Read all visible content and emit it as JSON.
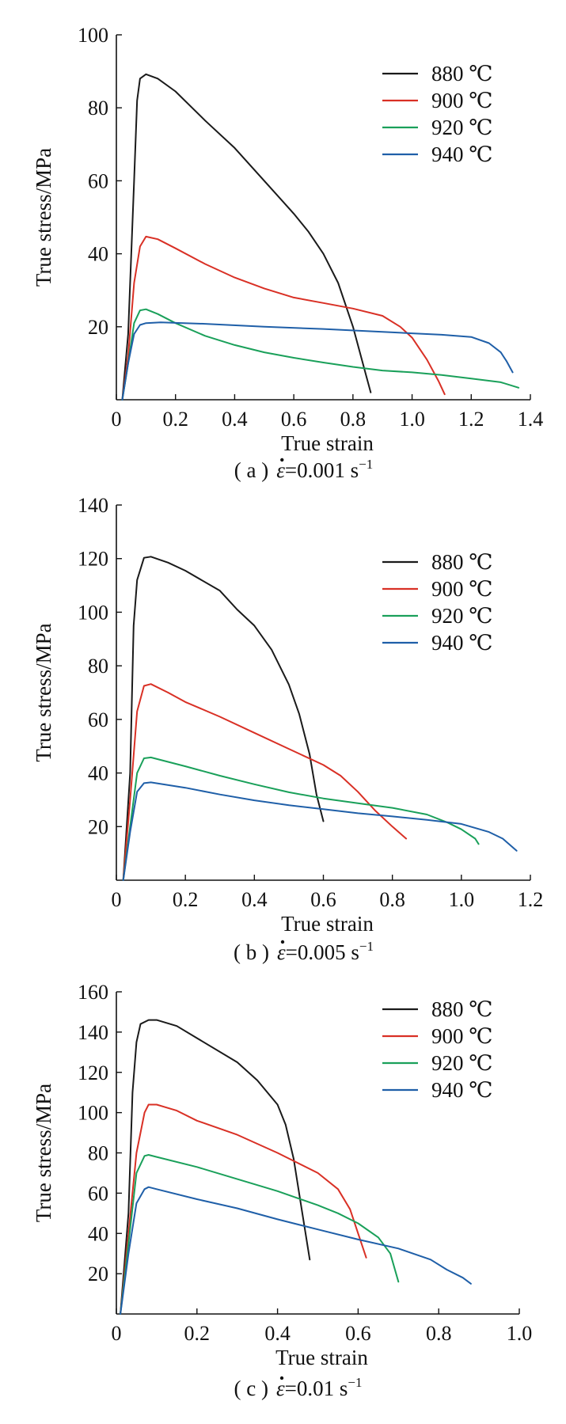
{
  "chart_data": [
    {
      "id": "a",
      "type": "line",
      "caption": {
        "prefix": "( a )",
        "symbol": "ε",
        "rest": "=0.001 s",
        "sup": "−1"
      },
      "xlabel": "True strain",
      "ylabel": "True stress/MPa",
      "xlim": [
        0,
        1.4
      ],
      "ylim": [
        0,
        100
      ],
      "xticks": [
        "0",
        "0.2",
        "0.4",
        "0.6",
        "0.8",
        "1.0",
        "1.2",
        "1.4"
      ],
      "yticks": [
        "20",
        "40",
        "60",
        "80",
        "100"
      ],
      "x_tick_values": [
        0,
        0.2,
        0.4,
        0.6,
        0.8,
        1.0,
        1.2,
        1.4
      ],
      "y_tick_values": [
        20,
        40,
        60,
        80,
        100
      ],
      "grid": false,
      "legend_position": "top-right",
      "series": [
        {
          "name": "880 ℃",
          "color": "#1a1a1a",
          "points": [
            [
              0.02,
              0
            ],
            [
              0.04,
              18
            ],
            [
              0.06,
              60
            ],
            [
              0.07,
              82
            ],
            [
              0.08,
              88
            ],
            [
              0.1,
              89.2
            ],
            [
              0.14,
              88
            ],
            [
              0.2,
              84.5
            ],
            [
              0.3,
              76.5
            ],
            [
              0.4,
              69
            ],
            [
              0.5,
              60
            ],
            [
              0.6,
              51
            ],
            [
              0.65,
              46
            ],
            [
              0.7,
              40
            ],
            [
              0.75,
              32
            ],
            [
              0.8,
              20
            ],
            [
              0.84,
              8
            ],
            [
              0.86,
              2
            ]
          ]
        },
        {
          "name": "900 ℃",
          "color": "#d93025",
          "points": [
            [
              0.02,
              0
            ],
            [
              0.04,
              12
            ],
            [
              0.06,
              32
            ],
            [
              0.08,
              42
            ],
            [
              0.1,
              44.7
            ],
            [
              0.14,
              44
            ],
            [
              0.2,
              41.5
            ],
            [
              0.3,
              37.2
            ],
            [
              0.4,
              33.5
            ],
            [
              0.5,
              30.5
            ],
            [
              0.6,
              28
            ],
            [
              0.7,
              26.5
            ],
            [
              0.8,
              25
            ],
            [
              0.9,
              23
            ],
            [
              0.96,
              20
            ],
            [
              1.0,
              17
            ],
            [
              1.05,
              11
            ],
            [
              1.09,
              5
            ],
            [
              1.11,
              1.5
            ]
          ]
        },
        {
          "name": "920 ℃",
          "color": "#1aa05a",
          "points": [
            [
              0.02,
              0
            ],
            [
              0.04,
              10
            ],
            [
              0.06,
              21
            ],
            [
              0.08,
              24.5
            ],
            [
              0.1,
              24.8
            ],
            [
              0.14,
              23.5
            ],
            [
              0.2,
              21
            ],
            [
              0.3,
              17.5
            ],
            [
              0.4,
              15
            ],
            [
              0.5,
              13
            ],
            [
              0.6,
              11.5
            ],
            [
              0.7,
              10.2
            ],
            [
              0.8,
              9
            ],
            [
              0.9,
              8
            ],
            [
              1.0,
              7.5
            ],
            [
              1.1,
              6.8
            ],
            [
              1.2,
              5.8
            ],
            [
              1.3,
              4.8
            ],
            [
              1.36,
              3.3
            ]
          ]
        },
        {
          "name": "940 ℃",
          "color": "#1f5fa8",
          "points": [
            [
              0.02,
              0
            ],
            [
              0.04,
              10
            ],
            [
              0.06,
              18
            ],
            [
              0.08,
              20.5
            ],
            [
              0.1,
              21
            ],
            [
              0.15,
              21.2
            ],
            [
              0.3,
              20.8
            ],
            [
              0.5,
              20
            ],
            [
              0.7,
              19.4
            ],
            [
              0.9,
              18.6
            ],
            [
              1.0,
              18.2
            ],
            [
              1.1,
              17.8
            ],
            [
              1.2,
              17.2
            ],
            [
              1.26,
              15.5
            ],
            [
              1.3,
              13
            ],
            [
              1.32,
              10.5
            ],
            [
              1.34,
              7.5
            ]
          ]
        }
      ]
    },
    {
      "id": "b",
      "type": "line",
      "caption": {
        "prefix": "( b )",
        "symbol": "ε",
        "rest": "=0.005 s",
        "sup": "−1"
      },
      "xlabel": "True strain",
      "ylabel": "True stress/MPa",
      "xlim": [
        0,
        1.2
      ],
      "ylim": [
        0,
        140
      ],
      "xticks": [
        "0",
        "0.2",
        "0.4",
        "0.6",
        "0.8",
        "1.0",
        "1.2"
      ],
      "yticks": [
        "20",
        "40",
        "60",
        "80",
        "100",
        "120",
        "140"
      ],
      "x_tick_values": [
        0,
        0.2,
        0.4,
        0.6,
        0.8,
        1.0,
        1.2
      ],
      "y_tick_values": [
        20,
        40,
        60,
        80,
        100,
        120,
        140
      ],
      "grid": false,
      "legend_position": "top-right",
      "series": [
        {
          "name": "880 ℃",
          "color": "#1a1a1a",
          "points": [
            [
              0.02,
              0
            ],
            [
              0.04,
              40
            ],
            [
              0.05,
              95
            ],
            [
              0.06,
              112
            ],
            [
              0.08,
              120.3
            ],
            [
              0.1,
              120.7
            ],
            [
              0.15,
              118.5
            ],
            [
              0.2,
              115.5
            ],
            [
              0.3,
              108
            ],
            [
              0.35,
              101
            ],
            [
              0.4,
              95
            ],
            [
              0.45,
              86
            ],
            [
              0.5,
              73
            ],
            [
              0.53,
              62
            ],
            [
              0.56,
              47
            ],
            [
              0.58,
              32
            ],
            [
              0.6,
              22
            ]
          ]
        },
        {
          "name": "900 ℃",
          "color": "#d93025",
          "points": [
            [
              0.02,
              0
            ],
            [
              0.04,
              30
            ],
            [
              0.06,
              63
            ],
            [
              0.08,
              72.5
            ],
            [
              0.1,
              73.2
            ],
            [
              0.15,
              70
            ],
            [
              0.2,
              66.5
            ],
            [
              0.3,
              61
            ],
            [
              0.4,
              55
            ],
            [
              0.5,
              49
            ],
            [
              0.6,
              43
            ],
            [
              0.65,
              39
            ],
            [
              0.7,
              33
            ],
            [
              0.75,
              26
            ],
            [
              0.8,
              20
            ],
            [
              0.84,
              15.5
            ]
          ]
        },
        {
          "name": "920 ℃",
          "color": "#1aa05a",
          "points": [
            [
              0.02,
              0
            ],
            [
              0.04,
              20
            ],
            [
              0.06,
              40
            ],
            [
              0.08,
              45.5
            ],
            [
              0.1,
              45.8
            ],
            [
              0.2,
              42.5
            ],
            [
              0.3,
              39
            ],
            [
              0.4,
              35.8
            ],
            [
              0.5,
              32.8
            ],
            [
              0.6,
              30.5
            ],
            [
              0.7,
              28.7
            ],
            [
              0.8,
              27
            ],
            [
              0.9,
              24.5
            ],
            [
              0.96,
              21.5
            ],
            [
              1.0,
              19
            ],
            [
              1.04,
              15.5
            ],
            [
              1.05,
              13.5
            ]
          ]
        },
        {
          "name": "940 ℃",
          "color": "#1f5fa8",
          "points": [
            [
              0.02,
              0
            ],
            [
              0.04,
              18
            ],
            [
              0.06,
              33
            ],
            [
              0.08,
              36.2
            ],
            [
              0.1,
              36.5
            ],
            [
              0.2,
              34.5
            ],
            [
              0.3,
              32
            ],
            [
              0.4,
              29.8
            ],
            [
              0.5,
              28
            ],
            [
              0.6,
              26.5
            ],
            [
              0.7,
              25
            ],
            [
              0.8,
              23.8
            ],
            [
              0.9,
              22.5
            ],
            [
              1.0,
              21
            ],
            [
              1.08,
              18
            ],
            [
              1.12,
              15.5
            ],
            [
              1.16,
              11
            ]
          ]
        }
      ]
    },
    {
      "id": "c",
      "type": "line",
      "caption": {
        "prefix": "( c )",
        "symbol": "ε",
        "rest": "=0.01 s",
        "sup": "−1"
      },
      "xlabel": "True strain",
      "ylabel": "True stress/MPa",
      "xlim": [
        0,
        1.0
      ],
      "ylim": [
        0,
        160
      ],
      "xticks": [
        "0",
        "0.2",
        "0.4",
        "0.6",
        "0.8",
        "1.0"
      ],
      "yticks": [
        "20",
        "40",
        "60",
        "80",
        "100",
        "120",
        "140",
        "160"
      ],
      "x_tick_values": [
        0,
        0.2,
        0.4,
        0.6,
        0.8,
        1.0
      ],
      "y_tick_values": [
        20,
        40,
        60,
        80,
        100,
        120,
        140,
        160
      ],
      "grid": false,
      "legend_position": "top-right",
      "series": [
        {
          "name": "880 ℃",
          "color": "#1a1a1a",
          "points": [
            [
              0.01,
              0
            ],
            [
              0.03,
              50
            ],
            [
              0.04,
              110
            ],
            [
              0.05,
              135
            ],
            [
              0.06,
              144
            ],
            [
              0.08,
              146
            ],
            [
              0.1,
              146
            ],
            [
              0.15,
              143
            ],
            [
              0.2,
              137
            ],
            [
              0.3,
              125
            ],
            [
              0.35,
              116
            ],
            [
              0.4,
              104
            ],
            [
              0.42,
              94
            ],
            [
              0.44,
              77
            ],
            [
              0.46,
              52
            ],
            [
              0.48,
              27
            ]
          ]
        },
        {
          "name": "900 ℃",
          "color": "#d93025",
          "points": [
            [
              0.01,
              0
            ],
            [
              0.03,
              40
            ],
            [
              0.05,
              80
            ],
            [
              0.07,
              100
            ],
            [
              0.08,
              104
            ],
            [
              0.1,
              104
            ],
            [
              0.15,
              101
            ],
            [
              0.2,
              96
            ],
            [
              0.3,
              89
            ],
            [
              0.4,
              80
            ],
            [
              0.5,
              70
            ],
            [
              0.55,
              62
            ],
            [
              0.58,
              52
            ],
            [
              0.6,
              40
            ],
            [
              0.62,
              28
            ]
          ]
        },
        {
          "name": "920 ℃",
          "color": "#1aa05a",
          "points": [
            [
              0.01,
              0
            ],
            [
              0.03,
              35
            ],
            [
              0.05,
              70
            ],
            [
              0.07,
              78.5
            ],
            [
              0.08,
              79
            ],
            [
              0.1,
              78
            ],
            [
              0.2,
              73
            ],
            [
              0.3,
              67
            ],
            [
              0.4,
              61
            ],
            [
              0.5,
              54
            ],
            [
              0.55,
              50
            ],
            [
              0.6,
              45
            ],
            [
              0.65,
              38
            ],
            [
              0.68,
              30
            ],
            [
              0.7,
              16
            ]
          ]
        },
        {
          "name": "940 ℃",
          "color": "#1f5fa8",
          "points": [
            [
              0.01,
              0
            ],
            [
              0.03,
              30
            ],
            [
              0.05,
              55
            ],
            [
              0.07,
              62
            ],
            [
              0.08,
              63
            ],
            [
              0.1,
              62
            ],
            [
              0.2,
              57
            ],
            [
              0.3,
              52.5
            ],
            [
              0.4,
              47
            ],
            [
              0.5,
              42
            ],
            [
              0.6,
              37
            ],
            [
              0.7,
              32.5
            ],
            [
              0.78,
              27
            ],
            [
              0.82,
              22
            ],
            [
              0.86,
              18
            ],
            [
              0.88,
              15
            ]
          ]
        }
      ]
    }
  ]
}
